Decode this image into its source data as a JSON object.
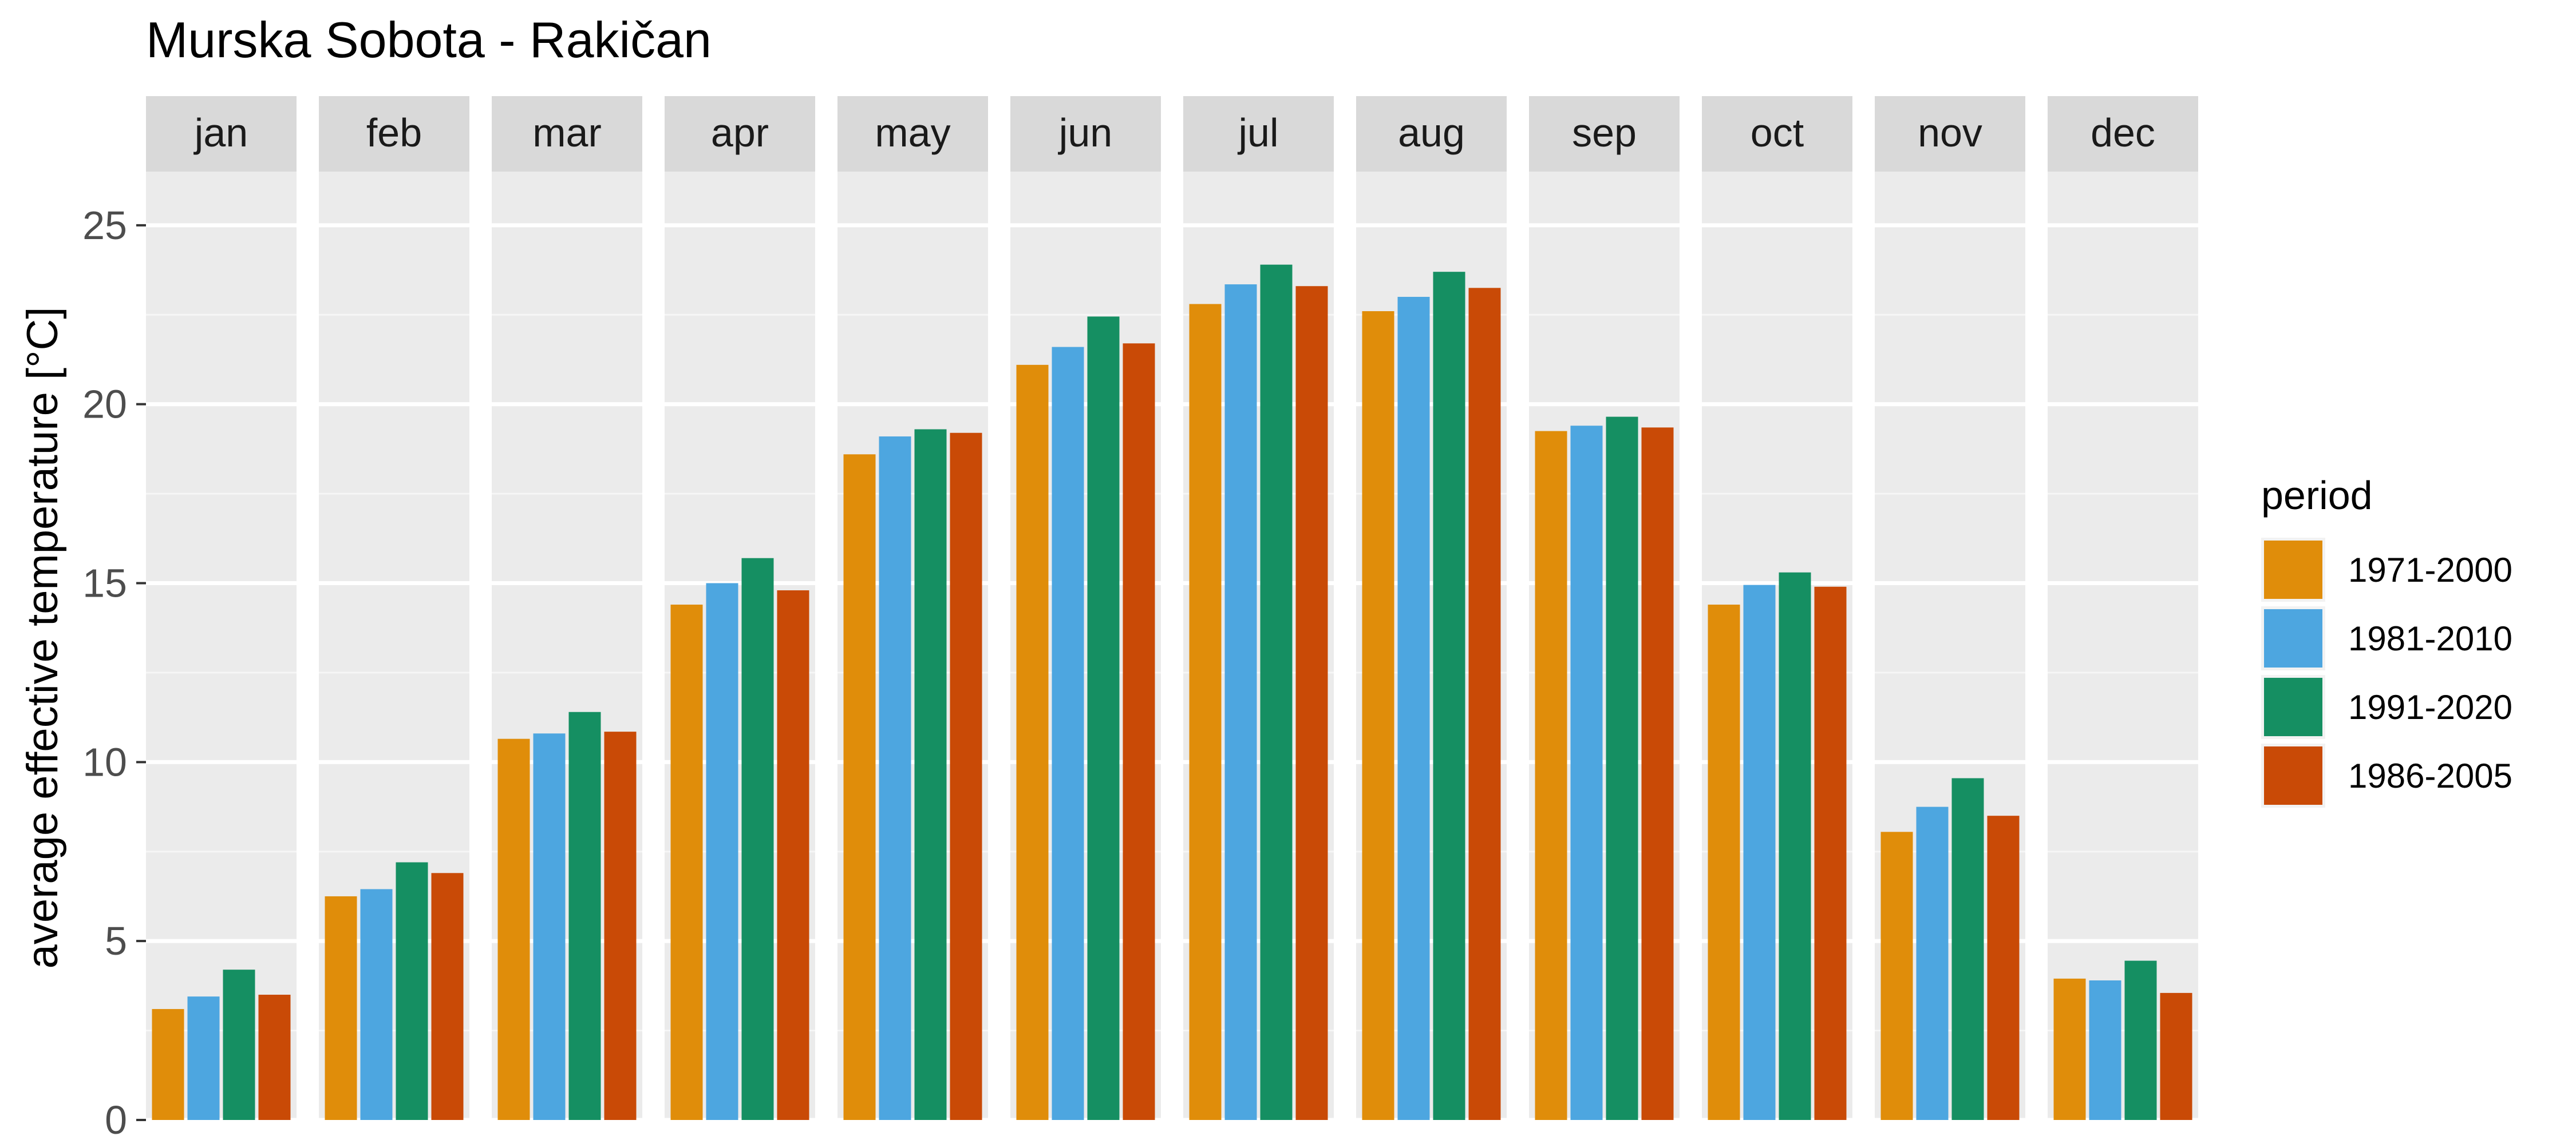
{
  "chart_data": {
    "type": "bar",
    "title": "Murska Sobota - Rakičan",
    "ylabel": "average effective temperature [°C]",
    "xlabel": "",
    "ylim": [
      0,
      26.5
    ],
    "yticks": [
      0,
      5,
      10,
      15,
      20,
      25
    ],
    "facets": [
      "jan",
      "feb",
      "mar",
      "apr",
      "may",
      "jun",
      "jul",
      "aug",
      "sep",
      "oct",
      "nov",
      "dec"
    ],
    "grid": true,
    "legend": {
      "title": "period",
      "position": "right"
    },
    "series": [
      {
        "name": "1971-2000",
        "color": "#E08D0A",
        "values": [
          3.1,
          6.25,
          10.65,
          14.4,
          18.6,
          21.1,
          22.8,
          22.6,
          19.25,
          14.4,
          8.05,
          3.95
        ]
      },
      {
        "name": "1981-2010",
        "color": "#4DA6E0",
        "values": [
          3.45,
          6.45,
          10.8,
          15.0,
          19.1,
          21.6,
          23.35,
          23.0,
          19.4,
          14.95,
          8.75,
          3.9
        ]
      },
      {
        "name": "1991-2020",
        "color": "#158F62",
        "values": [
          4.2,
          7.2,
          11.4,
          15.7,
          19.3,
          22.45,
          23.9,
          23.7,
          19.65,
          15.3,
          9.55,
          4.45
        ]
      },
      {
        "name": "1986-2005",
        "color": "#C94A06",
        "values": [
          3.5,
          6.9,
          10.85,
          14.8,
          19.2,
          21.7,
          23.3,
          23.25,
          19.35,
          14.9,
          8.5,
          3.55
        ]
      }
    ]
  }
}
